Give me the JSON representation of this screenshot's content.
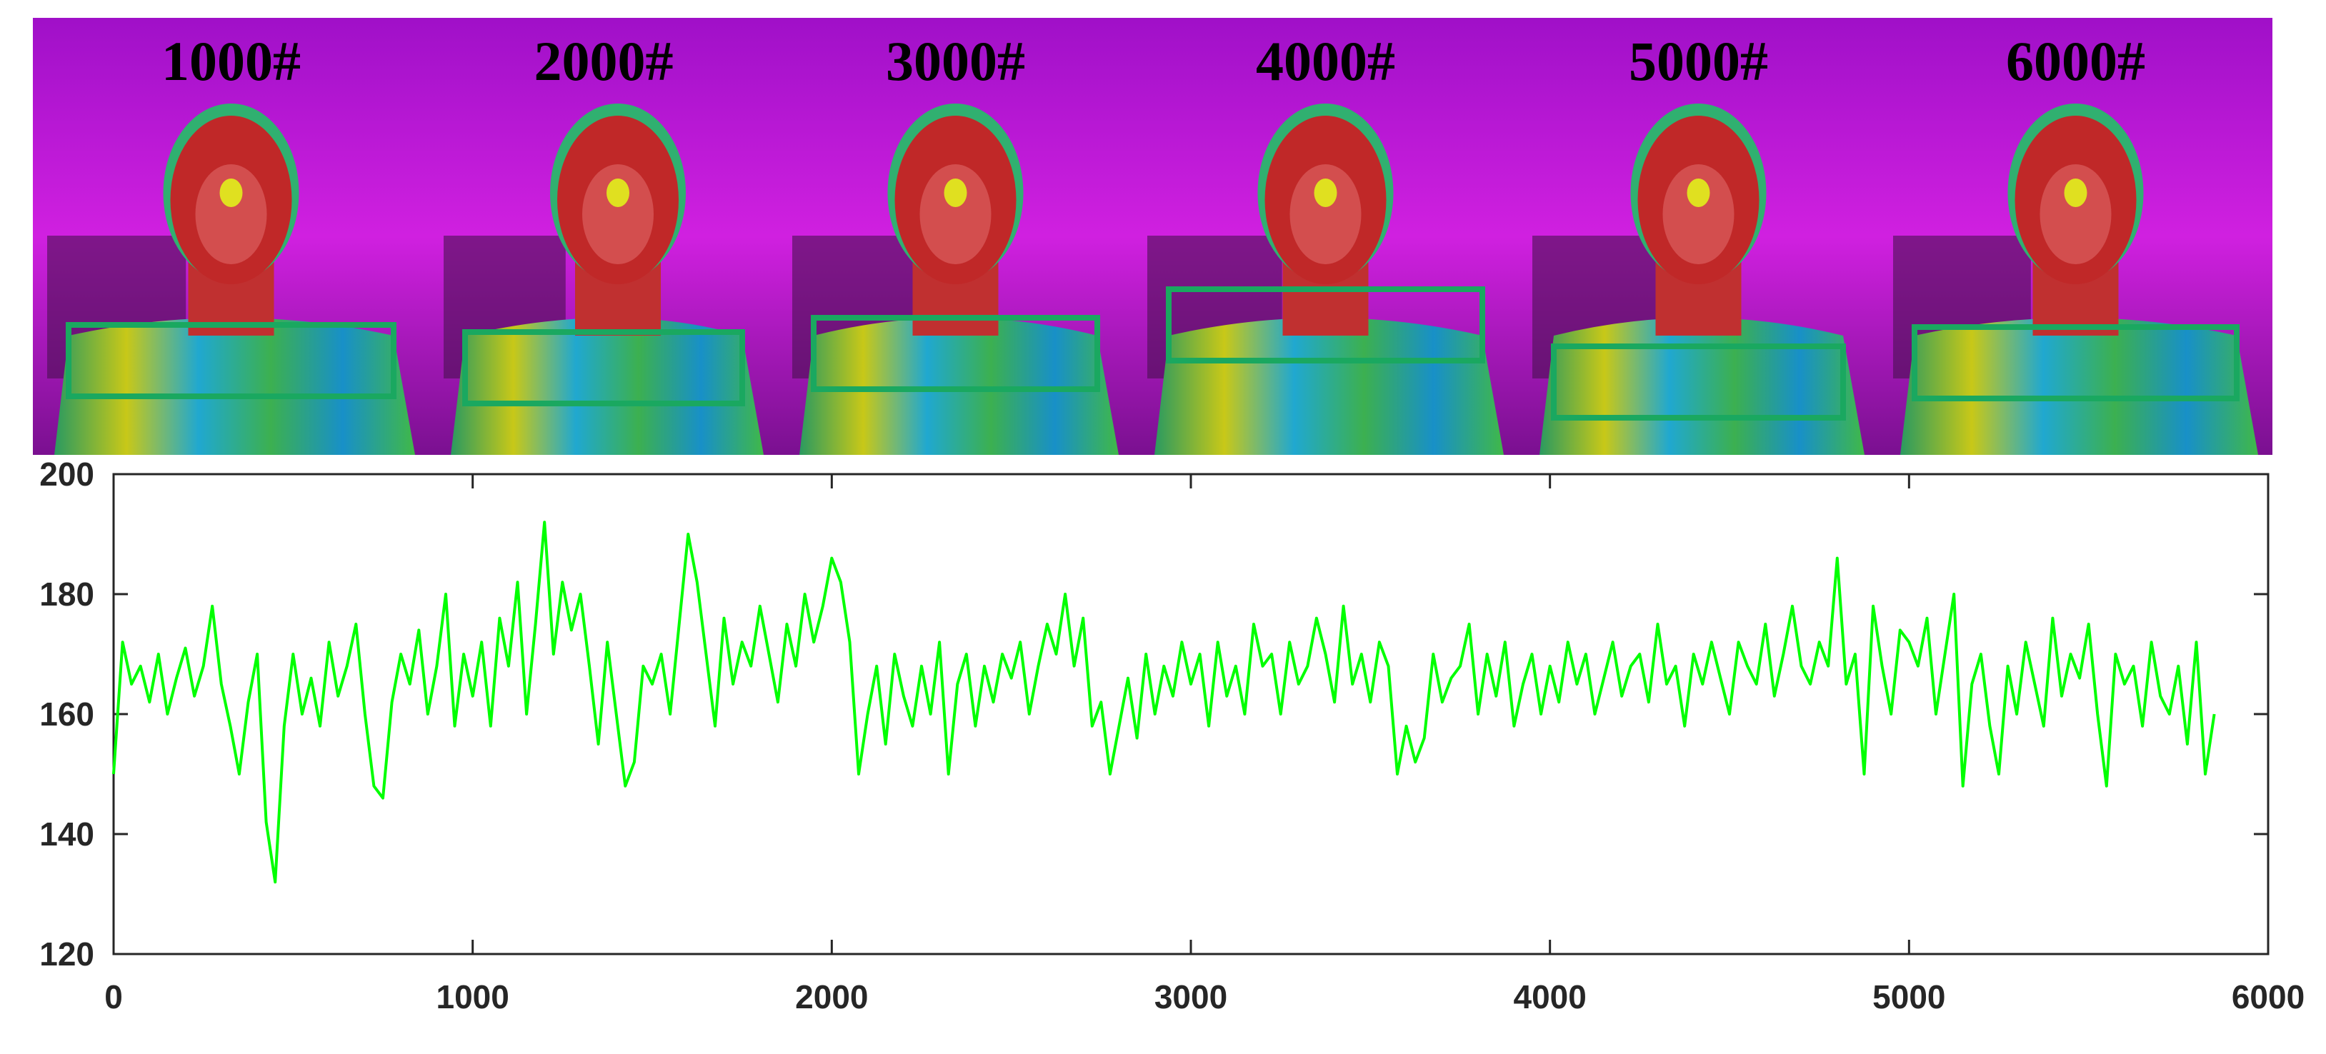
{
  "chart_data": {
    "type": "line",
    "panel_labels": [
      "1000#",
      "2000#",
      "3000#",
      "4000#",
      "5000#",
      "6000#"
    ],
    "xlim": [
      0,
      6000
    ],
    "xticks": [
      0,
      1000,
      2000,
      3000,
      4000,
      5000,
      6000
    ],
    "ylim": [
      120,
      200
    ],
    "yticks": [
      120,
      140,
      160,
      180,
      200
    ],
    "grid": false,
    "x": [
      0,
      25,
      50,
      75,
      100,
      125,
      150,
      175,
      200,
      225,
      250,
      275,
      300,
      325,
      350,
      375,
      400,
      425,
      450,
      475,
      500,
      525,
      550,
      575,
      600,
      625,
      650,
      675,
      700,
      725,
      750,
      775,
      800,
      825,
      850,
      875,
      900,
      925,
      950,
      975,
      1000,
      1025,
      1050,
      1075,
      1100,
      1125,
      1150,
      1175,
      1200,
      1225,
      1250,
      1275,
      1300,
      1325,
      1350,
      1375,
      1400,
      1425,
      1450,
      1475,
      1500,
      1525,
      1550,
      1575,
      1600,
      1625,
      1650,
      1675,
      1700,
      1725,
      1750,
      1775,
      1800,
      1825,
      1850,
      1875,
      1900,
      1925,
      1950,
      1975,
      2000,
      2025,
      2050,
      2075,
      2100,
      2125,
      2150,
      2175,
      2200,
      2225,
      2250,
      2275,
      2300,
      2325,
      2350,
      2375,
      2400,
      2425,
      2450,
      2475,
      2500,
      2525,
      2550,
      2575,
      2600,
      2625,
      2650,
      2675,
      2700,
      2725,
      2750,
      2775,
      2800,
      2825,
      2850,
      2875,
      2900,
      2925,
      2950,
      2975,
      3000,
      3025,
      3050,
      3075,
      3100,
      3125,
      3150,
      3175,
      3200,
      3225,
      3250,
      3275,
      3300,
      3325,
      3350,
      3375,
      3400,
      3425,
      3450,
      3475,
      3500,
      3525,
      3550,
      3575,
      3600,
      3625,
      3650,
      3675,
      3700,
      3725,
      3750,
      3775,
      3800,
      3825,
      3850,
      3875,
      3900,
      3925,
      3950,
      3975,
      4000,
      4025,
      4050,
      4075,
      4100,
      4125,
      4150,
      4175,
      4200,
      4225,
      4250,
      4275,
      4300,
      4325,
      4350,
      4375,
      4400,
      4425,
      4450,
      4475,
      4500,
      4525,
      4550,
      4575,
      4600,
      4625,
      4650,
      4675,
      4700,
      4725,
      4750,
      4775,
      4800,
      4825,
      4850,
      4875,
      4900,
      4925,
      4950,
      4975,
      5000,
      5025,
      5050,
      5075,
      5100,
      5125,
      5150,
      5175,
      5200,
      5225,
      5250,
      5275,
      5300,
      5325,
      5350,
      5375,
      5400,
      5425,
      5450,
      5475,
      5500,
      5525,
      5550,
      5575,
      5600,
      5625,
      5650,
      5675,
      5700,
      5725,
      5750,
      5775,
      5800,
      5825,
      5850
    ],
    "series": [
      {
        "color": "#00ff00",
        "values": [
          150,
          172,
          165,
          168,
          162,
          170,
          160,
          166,
          171,
          163,
          168,
          178,
          165,
          158,
          150,
          162,
          170,
          142,
          132,
          158,
          170,
          160,
          166,
          158,
          172,
          163,
          168,
          175,
          160,
          148,
          146,
          162,
          170,
          165,
          174,
          160,
          168,
          180,
          158,
          170,
          163,
          172,
          158,
          176,
          168,
          182,
          160,
          175,
          192,
          170,
          182,
          174,
          180,
          168,
          155,
          172,
          160,
          148,
          152,
          168,
          165,
          170,
          160,
          175,
          190,
          182,
          170,
          158,
          176,
          165,
          172,
          168,
          178,
          170,
          162,
          175,
          168,
          180,
          172,
          178,
          186,
          182,
          172,
          150,
          160,
          168,
          155,
          170,
          163,
          158,
          168,
          160,
          172,
          150,
          165,
          170,
          158,
          168,
          162,
          170,
          166,
          172,
          160,
          168,
          175,
          170,
          180,
          168,
          176,
          158,
          162,
          150,
          158,
          166,
          156,
          170,
          160,
          168,
          163,
          172,
          165,
          170,
          158,
          172,
          163,
          168,
          160,
          175,
          168,
          170,
          160,
          172,
          165,
          168,
          176,
          170,
          162,
          178,
          165,
          170,
          162,
          172,
          168,
          150,
          158,
          152,
          156,
          170,
          162,
          166,
          168,
          175,
          160,
          170,
          163,
          172,
          158,
          165,
          170,
          160,
          168,
          162,
          172,
          165,
          170,
          160,
          166,
          172,
          163,
          168,
          170,
          162,
          175,
          165,
          168,
          158,
          170,
          165,
          172,
          166,
          160,
          172,
          168,
          165,
          175,
          163,
          170,
          178,
          168,
          165,
          172,
          168,
          186,
          165,
          170,
          150,
          178,
          168,
          160,
          174,
          172,
          168,
          176,
          160,
          170,
          180,
          148,
          165,
          170,
          158,
          150,
          168,
          160,
          172,
          165,
          158,
          176,
          163,
          170,
          166,
          175,
          160,
          148,
          170,
          165,
          168,
          158,
          172,
          163,
          160,
          168,
          155,
          172,
          150,
          160
        ]
      }
    ]
  }
}
